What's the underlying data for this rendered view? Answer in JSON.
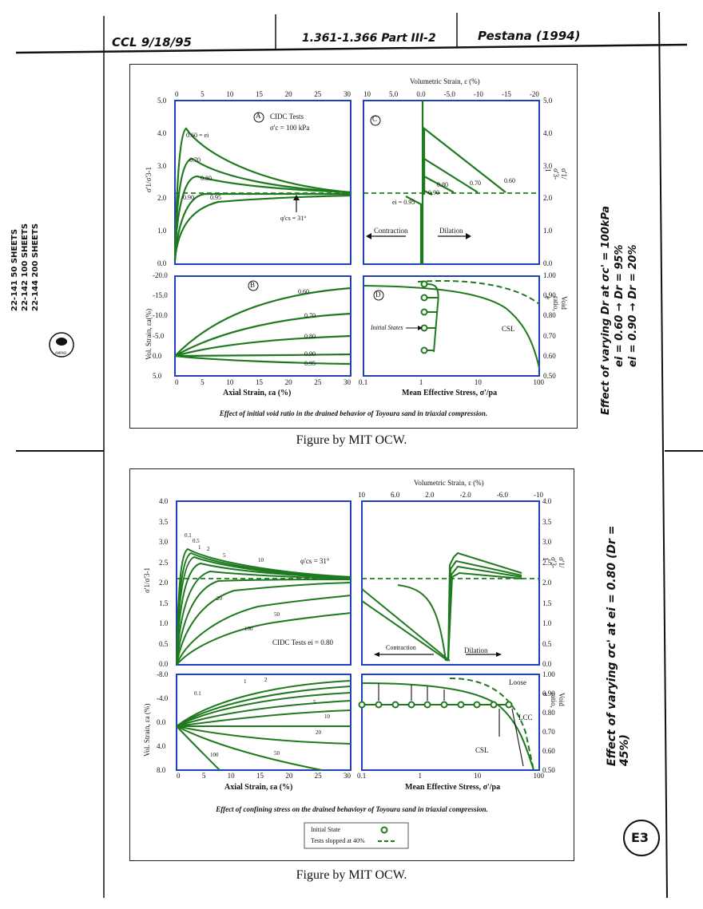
{
  "header": {
    "initials_date": "CCL 9/18/95",
    "pages_ref": "1.361-1.366 Part III-2",
    "source_ref": "Pestana (1994)"
  },
  "pad": {
    "line1": "22-141   50 SHEETS",
    "line2": "22-142  100 SHEETS",
    "line3": "22-144  200 SHEETS",
    "brand": "AMPAD"
  },
  "side_notes": {
    "top": [
      "Effect of varying Dr at σc' = 100kPa",
      "ei = 0.60 → Dr = 95%",
      "ei = 0.90 → Dr = 20%"
    ],
    "bottom": "Effect of varying σc' at ei = 0.80 (Dr = 45%)",
    "page_id": "E3"
  },
  "figure1": {
    "caption_inner": "Effect of initial void ratio in the drained behavior of Toyoura sand in triaxial compression.",
    "credit": "Figure by MIT OCW.",
    "panelA": {
      "label": "A",
      "title": "CIDC Tests",
      "sigma_c": "σ'c = 100 kPa",
      "ylabel": "σ'1/σ'3-1",
      "x_ticks": [
        "0",
        "5",
        "10",
        "15",
        "20",
        "25",
        "30"
      ],
      "y_ticks": [
        "0.0",
        "1.0",
        "2.0",
        "3.0",
        "4.0",
        "5.0"
      ],
      "curve_labels": [
        "0.60 = ei",
        "0.70",
        "0.80",
        "0.90",
        "0.95"
      ],
      "phi_label": "φ'cs = 31°"
    },
    "panelB": {
      "label": "B",
      "ylabel": "Vol. Strain, εa(%)",
      "xlabel": "Axial Strain, εa (%)",
      "y_ticks": [
        "-20.0",
        "-15.0",
        "-10.0",
        "-5.0",
        "0.0",
        "5.0"
      ],
      "x_ticks": [
        "0",
        "5",
        "10",
        "15",
        "20",
        "25",
        "30"
      ],
      "curve_labels": [
        "0.60",
        "0.70",
        "0.80",
        "0.90",
        "0.95"
      ]
    },
    "panelC": {
      "label": "C",
      "top_label": "Volumetric Strain, ε (%)",
      "x_ticks": [
        "10",
        "5.0",
        "0.0",
        "-5.0",
        "-10",
        "-15",
        "-20"
      ],
      "y_ticks": [
        "0.0",
        "1.0",
        "2.0",
        "3.0",
        "4.0",
        "5.0"
      ],
      "ylabel": "σ'1/σ'3-1",
      "curve_labels": [
        "0.80",
        "0.70",
        "0.60",
        "0.90",
        "ei = 0.95"
      ],
      "contraction": "Contraction",
      "dilation": "Dilation"
    },
    "panelD": {
      "label": "D",
      "xlabel": "Mean Effective Stress, σ'/pa",
      "x_ticks": [
        "0.1",
        "1",
        "10",
        "100"
      ],
      "y_ticks": [
        "0.50",
        "0.60",
        "0.70",
        "0.80",
        "0.90",
        "1.00"
      ],
      "ylabel": "Void ratio, e",
      "initial_states": "Initial States",
      "csl": "CSL"
    }
  },
  "figure2": {
    "caption_inner": "Effect of confining stress on the drained behavioyr of Toyoura sand in triaxial compression.",
    "credit": "Figure by MIT OCW.",
    "panelA": {
      "ylabel": "σ'1/σ'3-1",
      "y_ticks": [
        "0.0",
        "0.5",
        "1.0",
        "1.5",
        "2.0",
        "2.5",
        "3.0",
        "3.5",
        "4.0"
      ],
      "curve_labels": [
        "0.1",
        "0.5",
        "1",
        "2",
        "5",
        "10",
        "20",
        "50",
        "100"
      ],
      "phi_label": "φ'cs = 31°",
      "tests_label": "CIDC Tests ei = 0.80"
    },
    "panelB": {
      "ylabel": "Vol. Strain, εa (%)",
      "xlabel": "Axial Strain, εa (%)",
      "y_ticks": [
        "-8.0",
        "-4.0",
        "0.0",
        "4.0",
        "8.0"
      ],
      "x_ticks": [
        "0",
        "5",
        "10",
        "15",
        "20",
        "25",
        "30"
      ],
      "curve_labels": [
        "0.1",
        "1",
        "2",
        "5",
        "10",
        "20",
        "50",
        "100"
      ]
    },
    "panelC": {
      "top_label": "Volumetric Strain, ε (%)",
      "x_ticks": [
        "10",
        "6.0",
        "2.0",
        "-2.0",
        "-6.0",
        "-10"
      ],
      "y_ticks": [
        "0.0",
        "0.5",
        "1.0",
        "1.5",
        "2.0",
        "2.5",
        "3.0",
        "3.5",
        "4.0"
      ],
      "ylabel": "σ'1/σ'3-1",
      "contraction": "Contraction",
      "dilation": "Dilation"
    },
    "panelD": {
      "xlabel": "Mean Effective Stress, σ'/pa",
      "x_ticks": [
        "0.1",
        "1",
        "10",
        "100"
      ],
      "y_ticks": [
        "0.50",
        "0.60",
        "0.70",
        "0.80",
        "0.90",
        "1.00"
      ],
      "ylabel": "Void ratio, e",
      "loose": "Loose",
      "lcc": "LCC",
      "csl": "CSL"
    },
    "legend": {
      "initial_state": "Initial State",
      "slopped": "Tests slopped at 40%"
    }
  },
  "colors": {
    "curve": "#1f7a1f",
    "axis": "#1f3fbf"
  }
}
